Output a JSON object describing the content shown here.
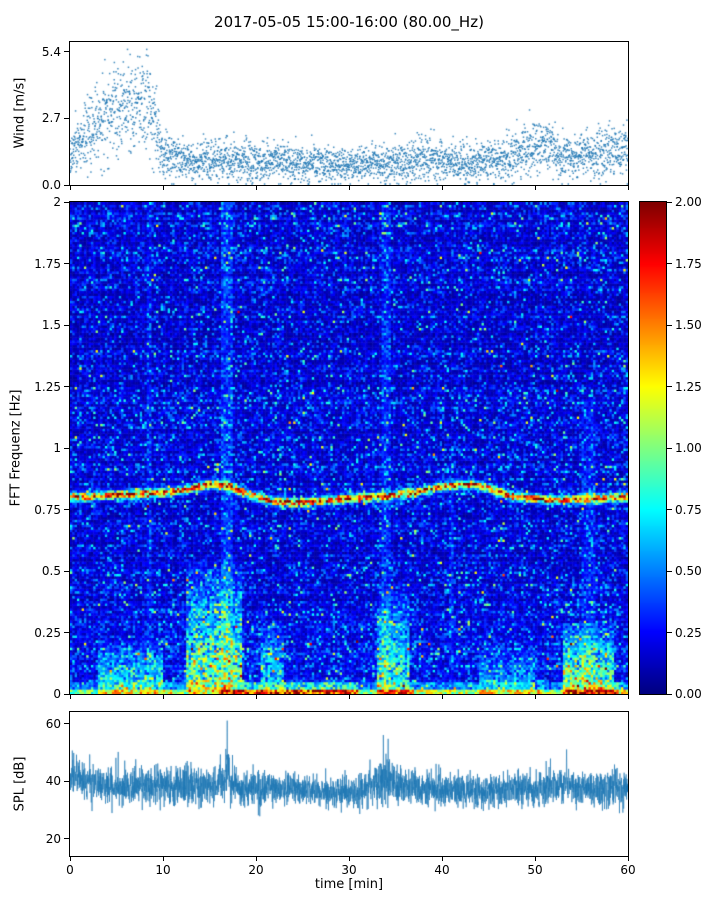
{
  "figure": {
    "title": "2017-05-05 15:00-16:00 (80.00_Hz)",
    "xlabel": "time [min]",
    "background": "#ffffff",
    "axis_color": "#000000",
    "series_color": "#1f77b4"
  },
  "xaxis": {
    "range": [
      0,
      60
    ],
    "values": [
      0,
      10,
      20,
      30,
      40,
      50,
      60
    ],
    "labels": [
      "0",
      "10",
      "20",
      "30",
      "40",
      "50",
      "60"
    ]
  },
  "colorbar": {
    "colormap": "jet",
    "clim": [
      0,
      2
    ],
    "values": [
      0,
      0.25,
      0.5,
      0.75,
      1,
      1.25,
      1.5,
      1.75,
      2
    ],
    "labels": [
      "0.00",
      "0.25",
      "0.50",
      "0.75",
      "1.00",
      "1.25",
      "1.50",
      "1.75",
      "2.00"
    ]
  },
  "chart_data": [
    {
      "type": "scatter",
      "name": "wind",
      "ylabel": "Wind [m/s]",
      "xlim": [
        0,
        60
      ],
      "ylim": [
        0,
        5.8
      ],
      "yticks": [
        0,
        2.7,
        5.4
      ],
      "ytick_labels": [
        "0.0",
        "2.7",
        "5.4"
      ],
      "marker_color": "#1f77b4",
      "samples_per_min": 60,
      "envelope": [
        [
          0,
          1.3,
          0.45
        ],
        [
          1,
          1.8,
          0.6
        ],
        [
          2,
          2.2,
          0.7
        ],
        [
          3,
          2.6,
          0.75
        ],
        [
          4,
          2.9,
          0.8
        ],
        [
          5,
          3.0,
          0.85
        ],
        [
          6,
          3.1,
          0.9
        ],
        [
          7,
          3.2,
          0.95
        ],
        [
          8,
          3.4,
          1.0
        ],
        [
          9,
          2.8,
          1.0
        ],
        [
          9.5,
          2.0,
          0.8
        ],
        [
          10,
          1.3,
          0.5
        ],
        [
          11,
          1.1,
          0.45
        ],
        [
          13,
          1.0,
          0.4
        ],
        [
          15,
          1.05,
          0.4
        ],
        [
          17,
          0.95,
          0.4
        ],
        [
          20,
          0.9,
          0.38
        ],
        [
          23,
          1.0,
          0.4
        ],
        [
          26,
          0.85,
          0.35
        ],
        [
          29,
          0.8,
          0.35
        ],
        [
          32,
          0.85,
          0.35
        ],
        [
          35,
          0.9,
          0.4
        ],
        [
          38,
          1.05,
          0.45
        ],
        [
          40,
          0.95,
          0.4
        ],
        [
          43,
          0.9,
          0.38
        ],
        [
          46,
          1.0,
          0.42
        ],
        [
          49,
          1.3,
          0.5
        ],
        [
          50.5,
          1.7,
          0.6
        ],
        [
          51.5,
          1.5,
          0.55
        ],
        [
          53,
          1.1,
          0.45
        ],
        [
          55,
          1.2,
          0.48
        ],
        [
          57,
          1.3,
          0.5
        ],
        [
          58.5,
          1.45,
          0.5
        ],
        [
          60,
          1.3,
          0.5
        ]
      ]
    },
    {
      "type": "heatmap",
      "name": "spectrogram",
      "ylabel": "FFT Frequenz [Hz]",
      "xlim": [
        0,
        60
      ],
      "ylim": [
        0,
        2
      ],
      "yticks": [
        0,
        0.25,
        0.5,
        0.75,
        1,
        1.25,
        1.5,
        1.75,
        2
      ],
      "ytick_labels": [
        "0",
        "0.25",
        "0.5",
        "0.75",
        "1",
        "1.25",
        "1.5",
        "1.75",
        "2"
      ],
      "clim": [
        0,
        2
      ],
      "colormap": "jet",
      "time_bins": 240,
      "freq_bins": 200,
      "background_level": 0.16,
      "tonal_band": {
        "width_hz": 0.016,
        "intensity": 1.5,
        "track": [
          [
            0,
            0.8
          ],
          [
            4,
            0.81
          ],
          [
            8,
            0.815
          ],
          [
            12,
            0.83
          ],
          [
            15,
            0.855
          ],
          [
            17,
            0.85
          ],
          [
            19,
            0.815
          ],
          [
            22,
            0.785
          ],
          [
            25,
            0.78
          ],
          [
            28,
            0.79
          ],
          [
            31,
            0.8
          ],
          [
            34,
            0.805
          ],
          [
            37,
            0.82
          ],
          [
            40,
            0.845
          ],
          [
            43,
            0.855
          ],
          [
            45,
            0.84
          ],
          [
            47,
            0.81
          ],
          [
            49,
            0.8
          ],
          [
            52,
            0.79
          ],
          [
            55,
            0.795
          ],
          [
            58,
            0.8
          ],
          [
            60,
            0.805
          ]
        ]
      },
      "low_freq_events": [
        [
          3,
          10,
          0.22,
          0.8
        ],
        [
          12.5,
          18.5,
          0.55,
          1.1
        ],
        [
          20.5,
          23,
          0.3,
          0.7
        ],
        [
          33,
          36.5,
          0.45,
          0.9
        ],
        [
          44,
          50,
          0.2,
          0.6
        ],
        [
          53,
          58.5,
          0.3,
          1.2
        ]
      ],
      "broadband_events": [
        [
          8.3,
          8.8,
          2,
          0.15
        ],
        [
          16.3,
          17.6,
          2,
          0.22
        ],
        [
          33.6,
          34.6,
          2,
          0.18
        ],
        [
          40.8,
          41.3,
          1.0,
          0.12
        ],
        [
          55,
          56.5,
          1.2,
          0.15
        ]
      ],
      "bottom_segments": [
        [
          0,
          3,
          1.1
        ],
        [
          3,
          11,
          1.5
        ],
        [
          11,
          16,
          1.2
        ],
        [
          16,
          31,
          2.0
        ],
        [
          31,
          33,
          1.2
        ],
        [
          33,
          37,
          1.9
        ],
        [
          37,
          44,
          1.3
        ],
        [
          44,
          51,
          1.5
        ],
        [
          51,
          53,
          1.2
        ],
        [
          53,
          59,
          2.0
        ],
        [
          59,
          60,
          1.4
        ]
      ]
    },
    {
      "type": "line",
      "name": "spl",
      "ylabel": "SPL [dB]",
      "xlim": [
        0,
        60
      ],
      "ylim": [
        14,
        64
      ],
      "yticks": [
        20,
        40,
        60
      ],
      "ytick_labels": [
        "20",
        "40",
        "60"
      ],
      "line_color": "#1f77b4",
      "samples_per_min": 60,
      "envelope": [
        [
          0,
          42,
          5
        ],
        [
          1,
          41,
          5
        ],
        [
          3,
          39,
          4.5
        ],
        [
          6,
          38,
          4.5
        ],
        [
          9,
          38.5,
          5
        ],
        [
          12,
          38,
          5
        ],
        [
          15,
          38,
          5
        ],
        [
          16.5,
          40,
          6
        ],
        [
          17,
          43,
          7
        ],
        [
          17.4,
          39,
          5
        ],
        [
          19,
          37,
          4.5
        ],
        [
          22,
          37.5,
          4.5
        ],
        [
          25,
          37,
          4
        ],
        [
          28,
          36.5,
          4
        ],
        [
          31,
          36.5,
          4
        ],
        [
          33,
          40,
          6
        ],
        [
          33.8,
          42,
          7
        ],
        [
          34.5,
          40,
          6
        ],
        [
          35.5,
          38,
          5
        ],
        [
          38,
          37,
          4.5
        ],
        [
          41,
          37,
          4.5
        ],
        [
          44,
          36.5,
          4.5
        ],
        [
          47,
          37,
          4.5
        ],
        [
          50,
          37,
          4.5
        ],
        [
          52.5,
          38,
          5
        ],
        [
          53.5,
          39.5,
          5.5
        ],
        [
          54.5,
          37,
          4.5
        ],
        [
          56,
          37.5,
          4.5
        ],
        [
          58,
          38,
          5
        ],
        [
          60,
          37,
          5
        ]
      ],
      "spikes": [
        [
          16.9,
          61
        ],
        [
          33.7,
          56
        ],
        [
          53.4,
          51
        ]
      ]
    }
  ]
}
